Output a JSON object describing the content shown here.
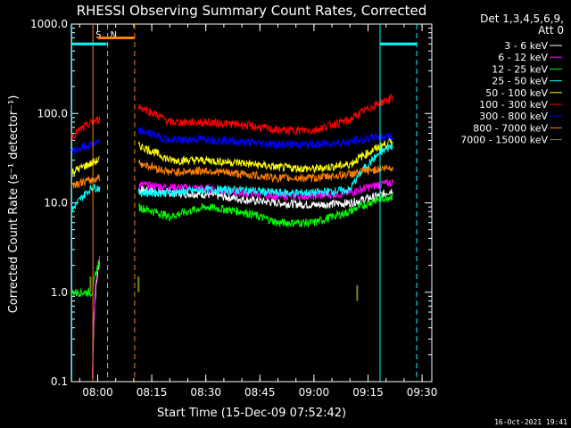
{
  "chart_data": {
    "type": "line",
    "title": "RHESSI Observing Summary Count Rates, Corrected",
    "xlabel": "Start Time (15-Dec-09 07:52:42)",
    "ylabel": "Corrected Count Rate (s⁻¹ detector⁻¹)",
    "y_scale": "log",
    "ylim": [
      0.1,
      1000
    ],
    "y_ticks": [
      "0.1",
      "1.0",
      "10.0",
      "100.0",
      "1000.0"
    ],
    "xlim": [
      "07:52:42",
      "09:32:42"
    ],
    "x_ticks": [
      "08:00",
      "08:15",
      "08:30",
      "08:45",
      "09:00",
      "09:15",
      "09:30"
    ],
    "legend_header": [
      "Det 1,3,4,5,6,9,",
      "Att 0"
    ],
    "legend_position": "right",
    "timestamp": "16-Oct-2021 19:41",
    "markers": [
      {
        "label": "S",
        "time": "07:58:40",
        "color": "#ff8000",
        "style": "solid"
      },
      {
        "label": "",
        "time": "08:10:15",
        "color": "#ff8000",
        "style": "dashed"
      },
      {
        "label": "",
        "time": "07:52:50",
        "color": "#00ffff",
        "style": "solid"
      },
      {
        "label": "N",
        "time": "08:02:45",
        "color": "#00ffff",
        "style": "dashed"
      },
      {
        "label": "",
        "time": "09:18:20",
        "color": "#00ffff",
        "style": "solid"
      },
      {
        "label": "",
        "time": "09:28:30",
        "color": "#00ffff",
        "style": "dashed"
      }
    ],
    "bars": [
      {
        "time_start": "07:52:42",
        "time_end": "08:02:30",
        "value": 600,
        "color": "#00ffff"
      },
      {
        "time_start": "08:00:00",
        "time_end": "08:10:15",
        "value": 700,
        "color": "#ff8000"
      },
      {
        "time_start": "09:18:20",
        "time_end": "09:28:30",
        "value": 600,
        "color": "#00ffff"
      }
    ],
    "gaps": [
      [
        "08:00:40",
        "08:11:20"
      ],
      [
        "09:22:10",
        "09:32:42"
      ]
    ],
    "series": [
      {
        "name": "3 - 6 keV",
        "color": "#ffffff",
        "x": [
          "07:52:42",
          "07:58:30",
          "08:11:20",
          "08:20",
          "08:30",
          "08:40",
          "08:50",
          "09:00",
          "09:10",
          "09:18",
          "09:22"
        ],
        "values": [
          0,
          0,
          14,
          13,
          12.5,
          11,
          10,
          9.5,
          10,
          12,
          14
        ]
      },
      {
        "name": "6 - 12 keV",
        "color": "#ff00ff",
        "x": [
          "07:52:42",
          "07:58:30",
          "08:11:20",
          "08:20",
          "08:30",
          "08:40",
          "08:50",
          "09:00",
          "09:10",
          "09:18",
          "09:22"
        ],
        "values": [
          0,
          0,
          16,
          15,
          14.5,
          13,
          12,
          12,
          13,
          16,
          17
        ]
      },
      {
        "name": "12 - 25 keV",
        "color": "#00ff00",
        "x": [
          "07:52:42",
          "07:58:30",
          "08:11:20",
          "08:20",
          "08:30",
          "08:40",
          "08:50",
          "09:00",
          "09:10",
          "09:18",
          "09:22"
        ],
        "values": [
          1,
          1,
          9,
          7,
          9,
          8,
          6,
          6,
          8,
          11,
          12
        ]
      },
      {
        "name": "25 - 50 keV",
        "color": "#00ffff",
        "x": [
          "07:52:42",
          "07:58:30",
          "08:11:20",
          "08:20",
          "08:30",
          "08:40",
          "08:50",
          "09:00",
          "09:10",
          "09:18",
          "09:22"
        ],
        "values": [
          8,
          15,
          13,
          13,
          14,
          14,
          13,
          13,
          14,
          35,
          45
        ]
      },
      {
        "name": "50 - 100 keV",
        "color": "#ffff00",
        "x": [
          "07:52:42",
          "07:58:30",
          "08:11:20",
          "08:20",
          "08:30",
          "08:40",
          "08:50",
          "09:00",
          "09:10",
          "09:18",
          "09:22"
        ],
        "values": [
          22,
          28,
          44,
          30,
          30,
          28,
          25,
          24,
          27,
          42,
          50
        ]
      },
      {
        "name": "100 - 300 keV",
        "color": "#ff0000",
        "x": [
          "07:52:42",
          "07:58:30",
          "08:11:20",
          "08:20",
          "08:30",
          "08:40",
          "08:50",
          "09:00",
          "09:10",
          "09:18",
          "09:22"
        ],
        "values": [
          55,
          80,
          120,
          80,
          80,
          75,
          65,
          65,
          85,
          130,
          150
        ]
      },
      {
        "name": "300 - 800 keV",
        "color": "#0000ff",
        "x": [
          "07:52:42",
          "07:58:30",
          "08:11:20",
          "08:20",
          "08:30",
          "08:40",
          "08:50",
          "09:00",
          "09:10",
          "09:18",
          "09:22"
        ],
        "values": [
          38,
          45,
          65,
          50,
          52,
          48,
          45,
          45,
          48,
          55,
          55
        ]
      },
      {
        "name": "800 - 7000 keV",
        "color": "#ff8000",
        "x": [
          "07:52:42",
          "07:58:30",
          "08:11:20",
          "08:20",
          "08:30",
          "08:40",
          "08:50",
          "09:00",
          "09:10",
          "09:18",
          "09:22"
        ],
        "values": [
          16,
          18,
          28,
          22,
          23,
          21,
          19,
          19,
          21,
          24,
          25
        ]
      },
      {
        "name": "7000 - 15000 keV",
        "color": "#6b8e23",
        "x": [
          "07:58:00",
          "08:11:20",
          "09:12:00"
        ],
        "values": [
          1.0,
          1.0,
          0.8
        ]
      }
    ]
  }
}
